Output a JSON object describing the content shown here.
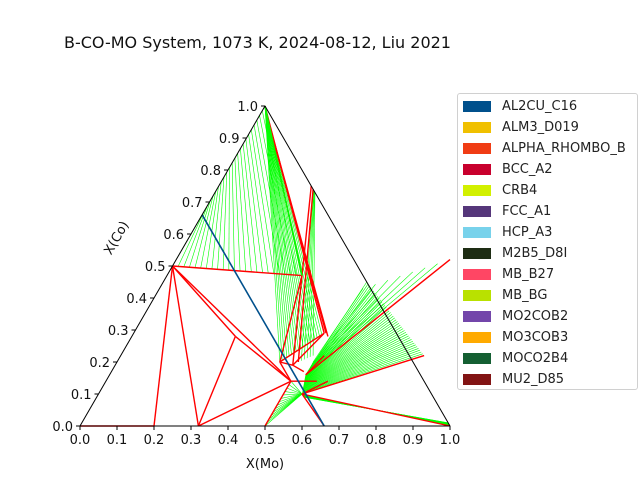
{
  "chart_data": {
    "type": "ternary",
    "title": "B-CO-MO System, 1073 K, 2024-08-12, Liu 2021",
    "xlabel": "X(Mo)",
    "ylabel": "X(Co)",
    "x_ticks": [
      "0.0",
      "0.1",
      "0.2",
      "0.3",
      "0.4",
      "0.5",
      "0.6",
      "0.7",
      "0.8",
      "0.9",
      "1.0"
    ],
    "y_ticks": [
      "0.0",
      "0.1",
      "0.2",
      "0.3",
      "0.4",
      "0.5",
      "0.6",
      "0.7",
      "0.8",
      "0.9",
      "1.0"
    ],
    "xlim": [
      0,
      1
    ],
    "ylim": [
      0,
      1
    ],
    "legend_position": "outside-right",
    "legend": [
      {
        "name": "AL2CU_C16",
        "color": "#00508c"
      },
      {
        "name": "ALM3_D019",
        "color": "#f0c000"
      },
      {
        "name": "ALPHA_RHOMBO_B",
        "color": "#f03c14"
      },
      {
        "name": "BCC_A2",
        "color": "#c8002d"
      },
      {
        "name": "CRB4",
        "color": "#d2f000"
      },
      {
        "name": "FCC_A1",
        "color": "#55367a"
      },
      {
        "name": "HCP_A3",
        "color": "#78d2eb"
      },
      {
        "name": "M2B5_D8I",
        "color": "#1e2d14"
      },
      {
        "name": "MB_B27",
        "color": "#ff4664"
      },
      {
        "name": "MB_BG",
        "color": "#b9e100"
      },
      {
        "name": "MO2COB2",
        "color": "#7346aa"
      },
      {
        "name": "MO3COB3",
        "color": "#ffaa00"
      },
      {
        "name": "MOCO2B4",
        "color": "#145f32"
      },
      {
        "name": "MU2_D85",
        "color": "#821414"
      }
    ],
    "tie_line_color": "#00ff00",
    "boundary_color": "#ff0000",
    "phase_boundaries": [
      [
        [
          0.0,
          0.5
        ],
        [
          0.28,
          0.28
        ]
      ],
      [
        [
          0.0,
          0.5
        ],
        [
          0.2,
          0.0
        ]
      ],
      [
        [
          0.0,
          0.5
        ],
        [
          0.32,
          0.0
        ]
      ],
      [
        [
          0.0,
          0.5
        ],
        [
          0.5,
          0.14
        ]
      ],
      [
        [
          0.0,
          0.5
        ],
        [
          0.365,
          0.47
        ]
      ],
      [
        [
          0.28,
          0.28
        ],
        [
          0.5,
          0.14
        ]
      ],
      [
        [
          0.28,
          0.28
        ],
        [
          0.32,
          0.0
        ]
      ],
      [
        [
          0.32,
          0.0
        ],
        [
          0.5,
          0.14
        ]
      ],
      [
        [
          0.5,
          0.0
        ],
        [
          0.5,
          0.14
        ]
      ],
      [
        [
          0.5,
          0.14
        ],
        [
          0.57,
          0.14
        ]
      ],
      [
        [
          0.5,
          0.14
        ],
        [
          0.44,
          0.2
        ]
      ],
      [
        [
          0.44,
          0.2
        ],
        [
          0.48,
          0.19
        ]
      ],
      [
        [
          0.365,
          0.47
        ],
        [
          0.44,
          0.2
        ]
      ],
      [
        [
          0.365,
          0.47
        ],
        [
          0.0,
          1.0
        ]
      ],
      [
        [
          0.44,
          0.2
        ],
        [
          0.515,
          0.29
        ]
      ],
      [
        [
          0.515,
          0.29
        ],
        [
          0.48,
          0.19
        ]
      ],
      [
        [
          0.515,
          0.29
        ],
        [
          0.0,
          1.0
        ]
      ],
      [
        [
          0.52,
          0.29
        ],
        [
          0.02,
          0.97
        ]
      ],
      [
        [
          0.53,
          0.28
        ],
        [
          0.035,
          0.95
        ]
      ],
      [
        [
          0.48,
          0.19
        ],
        [
          0.25,
          0.75
        ]
      ],
      [
        [
          0.49,
          0.2
        ],
        [
          0.26,
          0.74
        ]
      ],
      [
        [
          0.48,
          0.19
        ],
        [
          0.52,
          0.17
        ]
      ],
      [
        [
          0.53,
          0.16
        ],
        [
          0.55,
          0.22
        ]
      ],
      [
        [
          0.53,
          0.16
        ],
        [
          0.74,
          0.52
        ]
      ],
      [
        [
          0.55,
          0.1
        ],
        [
          0.6,
          0.14
        ]
      ],
      [
        [
          0.55,
          0.1
        ],
        [
          0.82,
          0.22
        ]
      ],
      [
        [
          0.55,
          0.1
        ],
        [
          1.0,
          0.0
        ]
      ],
      [
        [
          0.66,
          0.0
        ],
        [
          0.55,
          0.1
        ]
      ],
      [
        [
          0.0,
          0.0
        ],
        [
          0.2,
          0.0
        ]
      ]
    ],
    "tie_line_fans": [
      {
        "from": [
          [
            0.0,
            0.5
          ],
          [
            0.365,
            0.47
          ]
        ],
        "to": [
          [
            0.0,
            0.66
          ],
          [
            0.0,
            1.0
          ]
        ],
        "count": 24
      },
      {
        "from": [
          [
            0.515,
            0.29
          ],
          [
            0.44,
            0.2
          ]
        ],
        "to": [
          [
            0.0,
            1.0
          ],
          [
            0.0,
            1.0
          ]
        ],
        "count": 20
      },
      {
        "from": [
          [
            0.53,
            0.28
          ],
          [
            0.53,
            0.28
          ]
        ],
        "to": [
          [
            0.035,
            0.95
          ],
          [
            0.035,
            0.95
          ]
        ],
        "count": 1
      },
      {
        "from": [
          [
            0.49,
            0.2
          ],
          [
            0.52,
            0.22
          ]
        ],
        "to": [
          [
            0.26,
            0.74
          ],
          [
            0.27,
            0.73
          ]
        ],
        "count": 6
      },
      {
        "from": [
          [
            0.53,
            0.2
          ],
          [
            0.53,
            0.16
          ]
        ],
        "to": [
          [
            0.55,
            0.43
          ],
          [
            0.74,
            0.52
          ]
        ],
        "count": 8
      },
      {
        "from": [
          [
            0.53,
            0.16
          ],
          [
            0.55,
            0.1
          ]
        ],
        "to": [
          [
            0.55,
            0.45
          ],
          [
            0.82,
            0.22
          ]
        ],
        "count": 42
      },
      {
        "from": [
          [
            0.55,
            0.1
          ],
          [
            0.56,
            0.09
          ]
        ],
        "to": [
          [
            1.0,
            0.0
          ],
          [
            0.99,
            0.01
          ]
        ],
        "count": 20
      },
      {
        "from": [
          [
            0.5,
            0.0
          ],
          [
            0.5,
            0.14
          ]
        ],
        "to": [
          [
            0.55,
            0.1
          ],
          [
            0.55,
            0.1
          ]
        ],
        "count": 14
      }
    ],
    "special_lines": [
      {
        "color": "#00508c",
        "points": [
          [
            0.0,
            0.66
          ],
          [
            0.66,
            0.0
          ]
        ]
      },
      {
        "color": "#00ff00",
        "points": [
          [
            0.0,
            1.0
          ],
          [
            0.365,
            0.47
          ]
        ]
      }
    ]
  }
}
